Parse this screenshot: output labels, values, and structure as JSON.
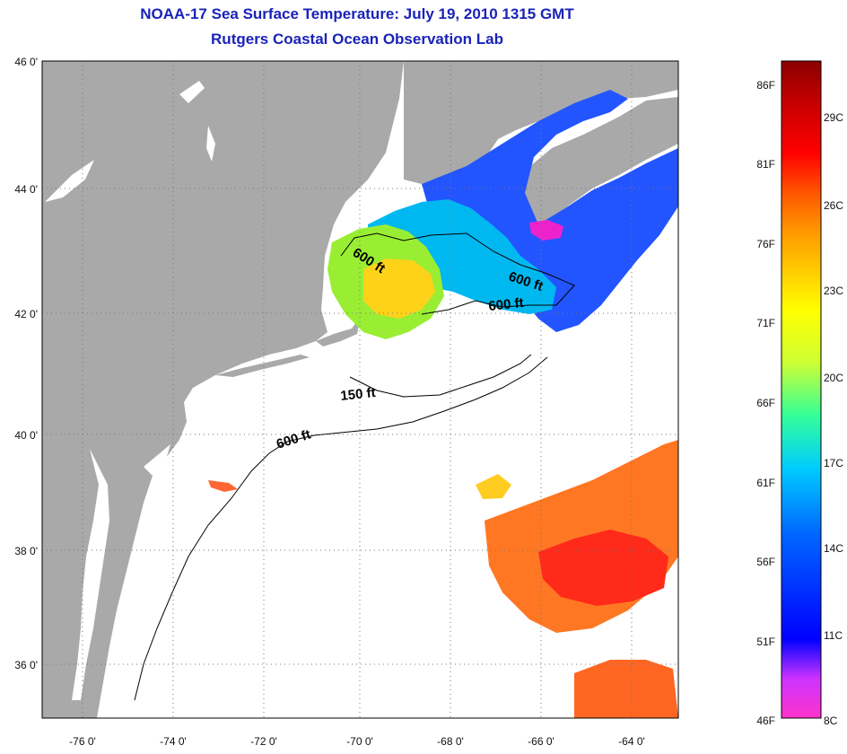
{
  "title": "NOAA-17 Sea Surface Temperature:  July 19, 2010 1315 GMT",
  "subtitle": "Rutgers Coastal Ocean Observation Lab",
  "map": {
    "lat_range": [
      35,
      46
    ],
    "lon_range": [
      -77,
      -63
    ],
    "lat_labels": [
      "46 0'",
      "44 0'",
      "42 0'",
      "40 0'",
      "38 0'",
      "36 0'"
    ],
    "lon_labels": [
      "-76 0'",
      "-74 0'",
      "-72 0'",
      "-70 0'",
      "-68 0'",
      "-66 0'",
      "-64 0'"
    ],
    "grid": "dotted",
    "colors": {
      "land": "#a9a9a9",
      "no_data": "#ffffff",
      "contour": "#000000"
    }
  },
  "contour_labels": [
    "600 ft",
    "600 ft",
    "600 ft",
    "150 ft",
    "600 ft"
  ],
  "colorbar": {
    "fahrenheit_labels": [
      "86F",
      "81F",
      "76F",
      "71F",
      "66F",
      "61F",
      "56F",
      "51F",
      "46F"
    ],
    "celsius_labels": [
      "29C",
      "26C",
      "23C",
      "20C",
      "17C",
      "14C",
      "11C",
      "8C"
    ],
    "colors": [
      "#ff33cc",
      "#cc33ff",
      "#0000ff",
      "#0066ff",
      "#00ccff",
      "#33ff99",
      "#ccff33",
      "#ffff00",
      "#ffcc00",
      "#ff9900",
      "#ff5500",
      "#ff0000",
      "#cc0000",
      "#8b0000"
    ]
  }
}
